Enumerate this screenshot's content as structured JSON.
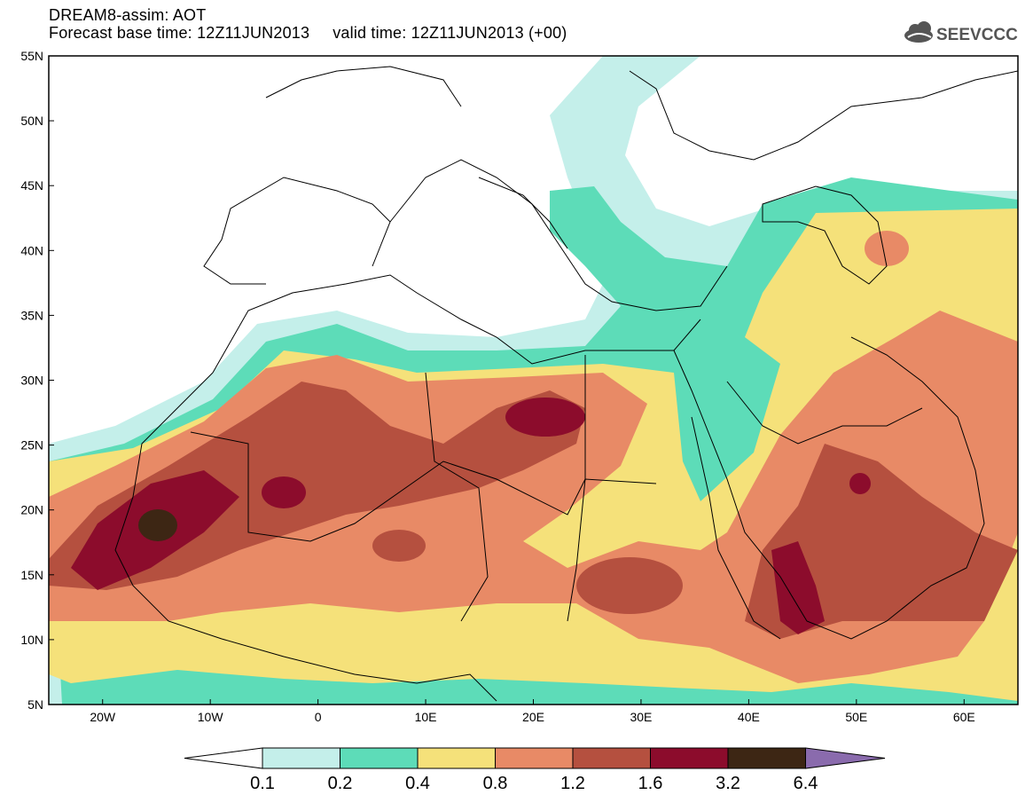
{
  "header": {
    "line1": "DREAM8-assim: AOT",
    "line2": "Forecast base time: 12Z11JUN2013     valid time: 12Z11JUN2013 (+00)",
    "logo_text": "SEEVCCC"
  },
  "map": {
    "lat_labels": [
      "55N",
      "50N",
      "45N",
      "40N",
      "35N",
      "30N",
      "25N",
      "20N",
      "15N",
      "10N",
      "5N"
    ],
    "lon_labels": [
      "20W",
      "10W",
      "0",
      "10E",
      "20E",
      "30E",
      "40E",
      "50E",
      "60E"
    ],
    "lon_range": [
      -25,
      65
    ],
    "lat_range": [
      5,
      55
    ]
  },
  "legend": {
    "labels": [
      "0.1",
      "0.2",
      "0.4",
      "0.8",
      "1.2",
      "1.6",
      "3.2",
      "6.4"
    ],
    "colors": [
      "#c4efea",
      "#5ddcb8",
      "#f5e17a",
      "#e88a66",
      "#b5503f",
      "#8c0c2c",
      "#3d2614",
      "#8a6bad"
    ]
  }
}
